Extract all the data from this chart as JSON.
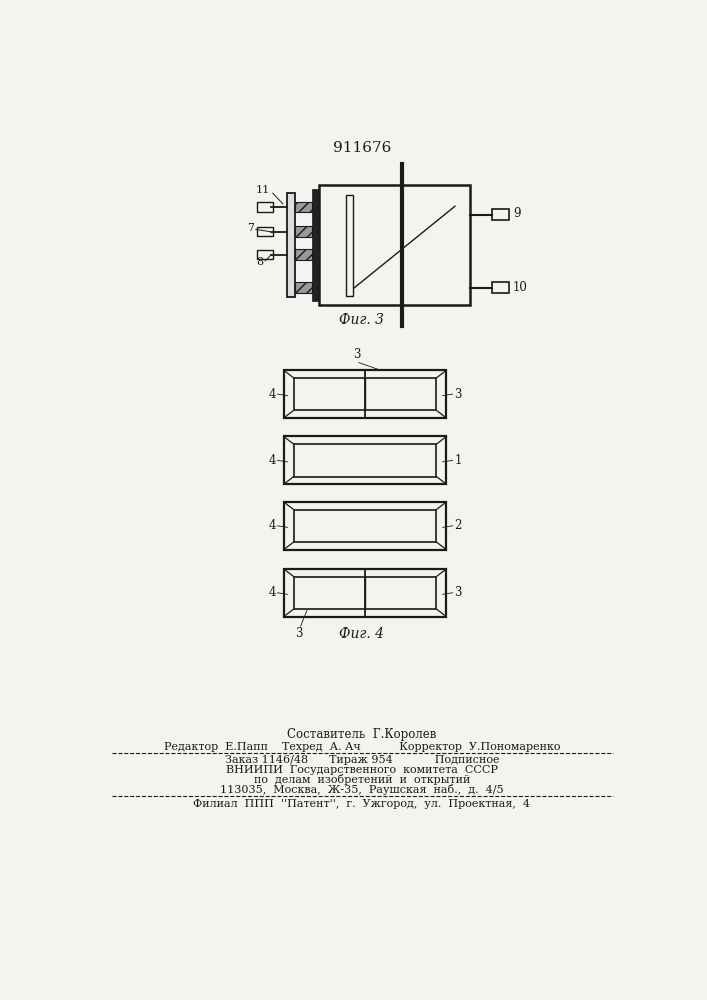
{
  "patent_number": "911676",
  "fig3_caption": "Фиг. 3",
  "fig4_caption": "Фиг. 4",
  "bg_color": "#f5f3ef",
  "line_color": "#1a1a1a",
  "footer_lines": [
    "Составитель  Г.Королев",
    "Редактор  Е.Папп    Техред  А. Ач           Корректор  У.Пономаренко",
    "Заказ 1146/48      Тираж 954            Подписное",
    "ВНИИПИ  Государственного  комитета  СССР",
    "по  делам  изобретений  и  открытий",
    "113035,  Москва,  Ж-35,  Раушская  наб.,  д.  4/5",
    "Филиал  ППП  ''Патент'',  г.  Ужгород,  ул.  Проектная,  4"
  ]
}
